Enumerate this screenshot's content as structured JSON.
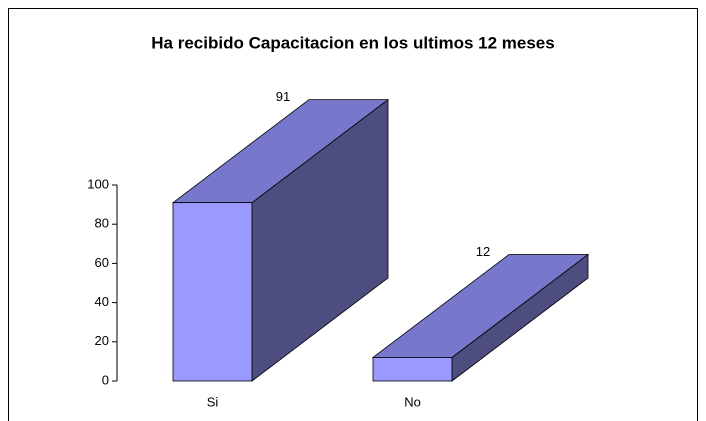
{
  "chart_data": {
    "type": "bar3d",
    "title": "Ha recibido Capacitacion en los ultimos 12 meses",
    "categories": [
      "Si",
      "No"
    ],
    "values": [
      91,
      12
    ],
    "color": "#9999ff",
    "ylim": [
      0,
      100
    ],
    "yticks": [
      0,
      20,
      40,
      60,
      80,
      100
    ]
  }
}
